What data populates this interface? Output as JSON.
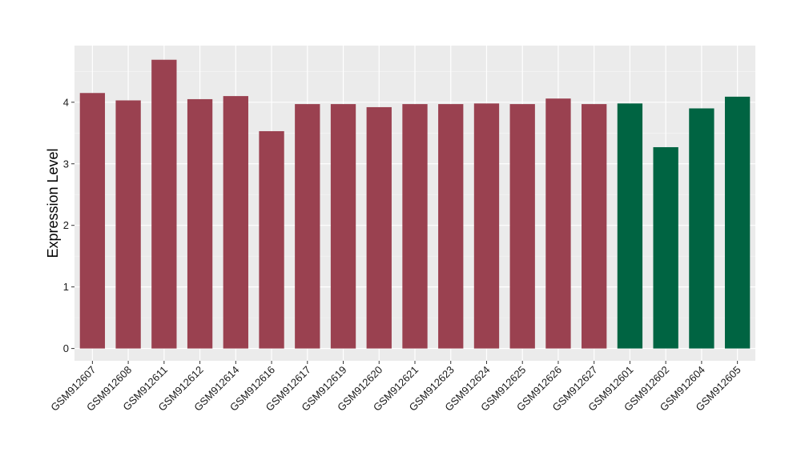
{
  "chart_data": {
    "type": "bar",
    "title": "",
    "xlabel": "",
    "ylabel": "Expression Level",
    "ylim": [
      -0.2,
      4.92
    ],
    "yticks": [
      0,
      1,
      2,
      3,
      4
    ],
    "categories": [
      "GSM912607",
      "GSM912608",
      "GSM912611",
      "GSM912612",
      "GSM912614",
      "GSM912616",
      "GSM912617",
      "GSM912619",
      "GSM912620",
      "GSM912621",
      "GSM912623",
      "GSM912624",
      "GSM912625",
      "GSM912626",
      "GSM912627",
      "GSM912601",
      "GSM912602",
      "GSM912604",
      "GSM912605"
    ],
    "values": [
      4.15,
      4.03,
      4.69,
      4.05,
      4.1,
      3.53,
      3.97,
      3.97,
      3.92,
      3.97,
      3.97,
      3.98,
      3.97,
      4.06,
      3.97,
      3.98,
      3.27,
      3.9,
      4.09
    ],
    "groups": [
      "a",
      "a",
      "a",
      "a",
      "a",
      "a",
      "a",
      "a",
      "a",
      "a",
      "a",
      "a",
      "a",
      "a",
      "a",
      "b",
      "b",
      "b",
      "b"
    ],
    "group_colors": {
      "a": "#9A4150",
      "b": "#006442"
    },
    "grid": true,
    "legend": "none",
    "panel_background": "#EBEBEB"
  }
}
